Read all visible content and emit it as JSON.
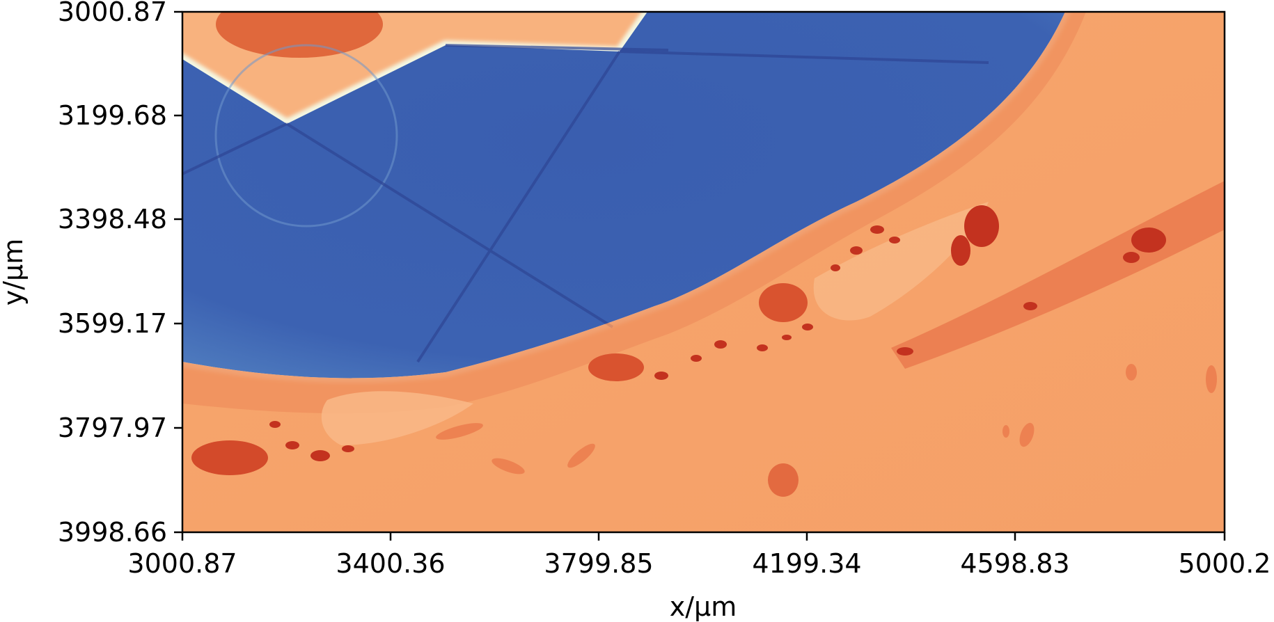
{
  "figure": {
    "axes": {
      "x": {
        "label": "x/μm",
        "ticks": [
          "3000.87",
          "3400.36",
          "3799.85",
          "4199.34",
          "4598.83",
          "5000.2"
        ]
      },
      "y": {
        "label": "y/μm",
        "ticks": [
          "3000.87",
          "3199.68",
          "3398.48",
          "3599.17",
          "3797.97",
          "3998.66"
        ]
      }
    },
    "colormap": {
      "low": "#3a5aa8",
      "mid": "#f3f6d8",
      "high": "#b01c22",
      "background_material": "#f6a06a",
      "void_material": "#3c60b0"
    }
  }
}
